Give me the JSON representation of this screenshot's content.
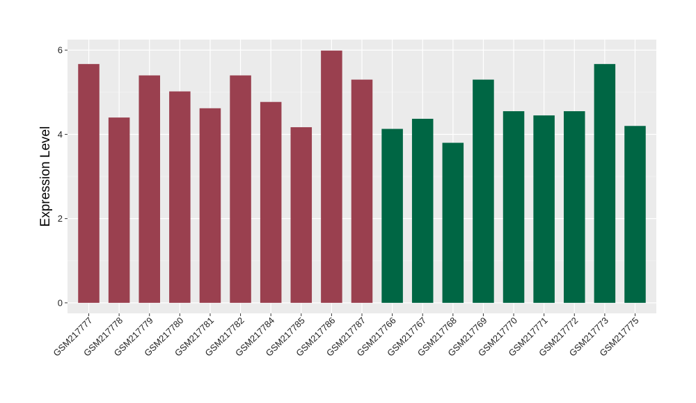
{
  "chart_data": {
    "type": "bar",
    "title": "",
    "xlabel": "",
    "ylabel": "Expression Level",
    "ylim": [
      -0.25,
      6.25
    ],
    "yticks": [
      0,
      2,
      4,
      6
    ],
    "grid": true,
    "background": "#EBEBEB",
    "categories": [
      "GSM217777",
      "GSM217778",
      "GSM217779",
      "GSM217780",
      "GSM217781",
      "GSM217782",
      "GSM217784",
      "GSM217785",
      "GSM217786",
      "GSM217787",
      "GSM217766",
      "GSM217767",
      "GSM217768",
      "GSM217769",
      "GSM217770",
      "GSM217771",
      "GSM217772",
      "GSM217773",
      "GSM217775"
    ],
    "values": [
      5.67,
      4.4,
      5.4,
      5.02,
      4.62,
      5.4,
      4.77,
      4.17,
      5.99,
      5.3,
      4.13,
      4.37,
      3.8,
      5.3,
      4.55,
      4.45,
      4.55,
      5.67,
      4.2
    ],
    "groups": [
      {
        "color": "#9A404F",
        "count": 10
      },
      {
        "color": "#006644",
        "count": 9
      }
    ]
  }
}
